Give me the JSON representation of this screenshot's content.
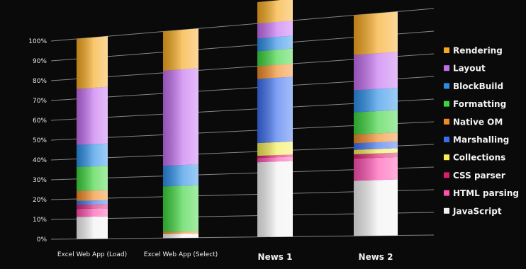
{
  "chart_data": {
    "type": "bar",
    "stacked": true,
    "normalized": true,
    "ylim": [
      0,
      100
    ],
    "yticks": [
      "0%",
      "10%",
      "20%",
      "30%",
      "40%",
      "50%",
      "60%",
      "70%",
      "80%",
      "90%",
      "100%"
    ],
    "categories": [
      "Excel Web App (Load)",
      "Excel Web App (Select)",
      "News 1",
      "News 2"
    ],
    "series": [
      {
        "name": "JavaScript",
        "color": "#f2f2f2",
        "values": [
          11,
          2,
          35,
          25
        ]
      },
      {
        "name": "HTML parsing",
        "color": "#ff4fb0",
        "values": [
          4,
          0,
          2,
          10
        ]
      },
      {
        "name": "CSS parser",
        "color": "#d81e6a",
        "values": [
          2,
          0,
          1,
          2
        ]
      },
      {
        "name": "Collections",
        "color": "#f4ee55",
        "values": [
          0,
          0,
          6,
          2
        ]
      },
      {
        "name": "Marshalling",
        "color": "#3a6ef0",
        "values": [
          2,
          0,
          30,
          3
        ]
      },
      {
        "name": "Native OM",
        "color": "#f08a24",
        "values": [
          5,
          1,
          6,
          4
        ]
      },
      {
        "name": "Formatting",
        "color": "#3bd43b",
        "values": [
          12,
          22,
          7,
          10
        ]
      },
      {
        "name": "BlockBuild",
        "color": "#2a8ee8",
        "values": [
          11,
          10,
          6,
          10
        ]
      },
      {
        "name": "Layout",
        "color": "#c36df0",
        "values": [
          28,
          46,
          7,
          16
        ]
      },
      {
        "name": "Rendering",
        "color": "#f6a81e",
        "values": [
          25,
          19,
          10,
          18
        ]
      }
    ],
    "legend_order": [
      "Rendering",
      "Layout",
      "BlockBuild",
      "Formatting",
      "Native OM",
      "Marshalling",
      "Collections",
      "CSS parser",
      "HTML parsing",
      "JavaScript"
    ],
    "legend_position": "right",
    "grid": true
  }
}
